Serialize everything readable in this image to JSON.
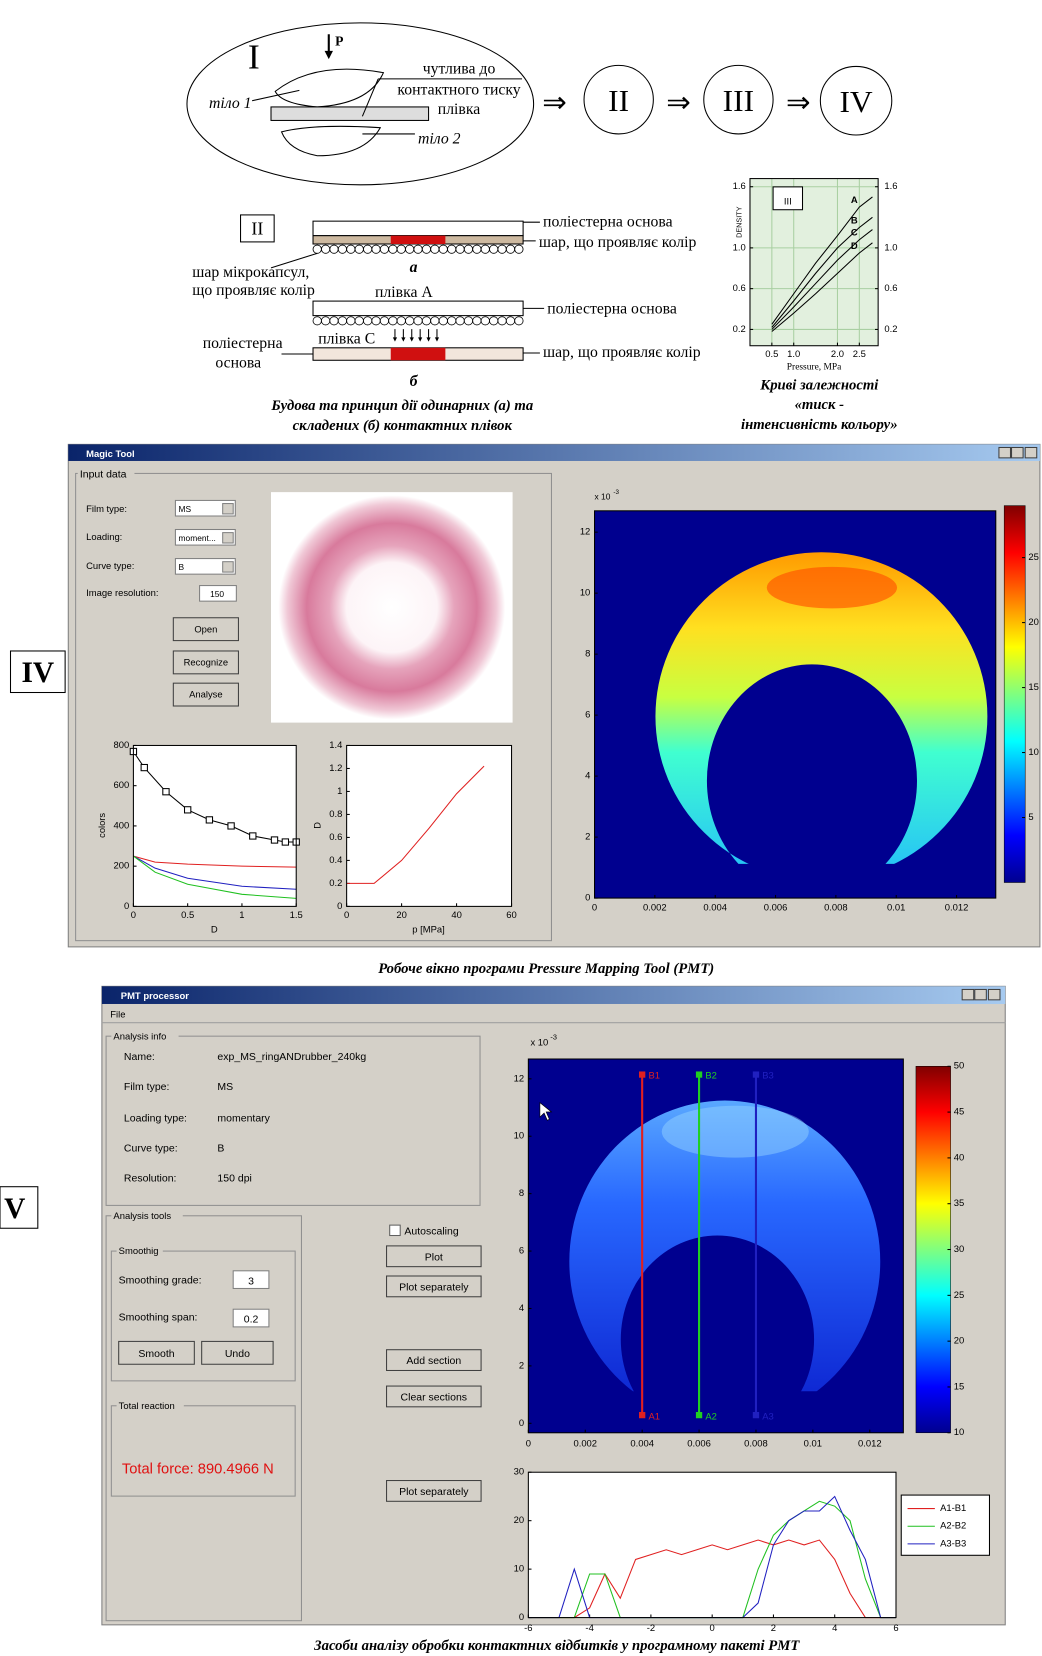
{
  "stage_I": {
    "label": "I",
    "force": "P",
    "film": [
      "чутлива до",
      "контактного тиску",
      "плівка"
    ],
    "body_1": "тіло 1",
    "body_2": "тіло 2",
    "arrow": "⇒",
    "next_stages": [
      "II",
      "III",
      "IV"
    ]
  },
  "film_structure": {
    "label": "II",
    "single_film": "а",
    "composite_film": "б",
    "base": "поліестерна основа",
    "color_layer": "шар, що проявляє колір",
    "microcapsules": [
      "шар мікрокапсул,",
      "що проявляє колір"
    ],
    "film_A": "плівка А",
    "film_C": "плівка С",
    "base_split": [
      "поліестерна",
      "основа"
    ],
    "caption": [
      "Будова та принцип дії одинарних (а) та",
      "складених (б) контактних плівок"
    ]
  },
  "density_chart": {
    "type": "line",
    "label": "III",
    "y_label": "DENSITY",
    "x_label": "Pressure, MPa",
    "xlim": [
      0,
      2.93
    ],
    "ylim": [
      0.04,
      1.68
    ],
    "y2lim": [
      0.04,
      1.68
    ],
    "xticks": [
      0.5,
      {
        "value": 1,
        "label": "1.0"
      },
      {
        "value": 2,
        "label": "2.0"
      },
      2.5
    ],
    "yticks": [
      0.2,
      0.6,
      {
        "value": 1,
        "label": "1.0"
      },
      1.6
    ],
    "y2ticks": [
      0.2,
      0.6,
      {
        "value": 1,
        "label": "1.0"
      },
      1.6
    ],
    "grid": true,
    "grid_color": "#a9cfa2",
    "background": "#e2f0de",
    "series": [
      {
        "name": "A",
        "color": "#000000",
        "x": [
          0.5,
          1,
          1.5,
          2,
          2.5,
          2.8
        ],
        "values": [
          0.25,
          0.55,
          0.85,
          1.12,
          1.4,
          1.5
        ]
      },
      {
        "name": "B",
        "color": "#000000",
        "x": [
          0.5,
          1,
          1.5,
          2,
          2.5,
          2.8
        ],
        "values": [
          0.22,
          0.48,
          0.75,
          1.0,
          1.2,
          1.3
        ]
      },
      {
        "name": "C",
        "color": "#000000",
        "x": [
          0.5,
          1,
          1.5,
          2,
          2.5,
          2.8
        ],
        "values": [
          0.2,
          0.42,
          0.65,
          0.88,
          1.08,
          1.18
        ]
      },
      {
        "name": "D",
        "color": "#000000",
        "x": [
          0.5,
          1,
          1.5,
          2,
          2.5,
          2.8
        ],
        "values": [
          0.18,
          0.36,
          0.55,
          0.75,
          0.95,
          1.05
        ]
      }
    ],
    "caption": [
      "Криві залежності",
      "«тиск -",
      "інтенсивність кольору»"
    ]
  },
  "window_IV": {
    "label": "IV",
    "title": "Magic Tool",
    "group": "Input data",
    "fields": [
      {
        "label": "Film type:",
        "value": "MS"
      },
      {
        "label": "Loading:",
        "value": "moment..."
      },
      {
        "label": "Curve type:",
        "value": "B"
      },
      {
        "label": "Image resolution:",
        "value": "150"
      }
    ],
    "buttons": [
      "Open",
      "Recognize",
      "Analyse"
    ],
    "colors_plot": {
      "type": "line",
      "x_label": "D",
      "y_label": "colors",
      "xlim": [
        0,
        1.5
      ],
      "ylim": [
        0,
        800
      ],
      "xticks": [
        0,
        0.5,
        1,
        1.5
      ],
      "yticks": [
        0,
        200,
        400,
        600,
        800
      ],
      "series": [
        {
          "color": "#000000",
          "marker": "square",
          "x": [
            0,
            0.1,
            0.3,
            0.5,
            0.7,
            0.9,
            1.1,
            1.3,
            1.4,
            1.5
          ],
          "values": [
            770,
            690,
            570,
            480,
            430,
            400,
            350,
            330,
            320,
            320
          ]
        },
        {
          "color": "#e02020",
          "x": [
            0,
            0.2,
            0.5,
            1,
            1.5
          ],
          "values": [
            250,
            220,
            210,
            200,
            195
          ]
        },
        {
          "color": "#2020c0",
          "x": [
            0,
            0.2,
            0.5,
            1,
            1.5
          ],
          "values": [
            250,
            190,
            140,
            100,
            85
          ]
        },
        {
          "color": "#20c020",
          "x": [
            0,
            0.2,
            0.5,
            1,
            1.5
          ],
          "values": [
            250,
            170,
            110,
            60,
            40
          ]
        }
      ]
    },
    "calibration_plot": {
      "type": "line",
      "x_label": "p [MPa]",
      "y_label": "D",
      "xlim": [
        0,
        60
      ],
      "ylim": [
        0,
        1.4
      ],
      "xticks": [
        0,
        20,
        40,
        60
      ],
      "yticks": [
        0,
        0.2,
        0.4,
        0.6,
        0.8,
        1,
        1.2,
        1.4
      ],
      "series": [
        {
          "color": "#e02020",
          "x": [
            0,
            10,
            20,
            30,
            40,
            50
          ],
          "values": [
            0.2,
            0.2,
            0.4,
            0.68,
            0.98,
            1.22
          ]
        }
      ]
    },
    "pressure_map": {
      "type": "heatmap",
      "xlim": [
        0,
        0.0133
      ],
      "ylim": [
        0,
        12.7
      ],
      "xticks": [
        0,
        0.002,
        0.004,
        0.006,
        0.008,
        0.01,
        0.012
      ],
      "yticks": [
        0,
        2,
        4,
        6,
        8,
        10,
        12
      ],
      "y_multiplier": "x 10",
      "y_exponent": "-3",
      "colorbar": {
        "clim": [
          0,
          29
        ],
        "ticks": [
          5,
          10,
          15,
          20,
          25
        ]
      }
    },
    "caption": "Робоче вікно програми Pressure Mapping Tool (PMT)"
  },
  "window_V": {
    "label": "V",
    "title": "PMT processor",
    "menu": "File",
    "info_group": "Analysis info",
    "info": [
      {
        "label": "Name:",
        "value": "exp_MS_ringANDrubber_240kg"
      },
      {
        "label": "Film type:",
        "value": "MS"
      },
      {
        "label": "Loading type:",
        "value": "momentary"
      },
      {
        "label": "Curve type:",
        "value": "B"
      },
      {
        "label": "Resolution:",
        "value": "150 dpi"
      }
    ],
    "tools_group": "Analysis tools",
    "smoothing_group": "Smoothig",
    "smoothing_grade": {
      "label": "Smoothing grade:",
      "value": 3
    },
    "smoothing_span": {
      "label": "Smoothing span:",
      "value": 0.2
    },
    "smooth_buttons": [
      "Smooth",
      "Undo"
    ],
    "reaction_group": "Total reaction",
    "total_force": "Total force: 890.4966 N",
    "autoscaling": "Autoscaling",
    "buttons": [
      "Plot",
      "Plot separately",
      "Add section",
      "Clear sections",
      "Plot separately"
    ],
    "pressure_map": {
      "type": "heatmap",
      "xlim": [
        0,
        0.01318
      ],
      "ylim": [
        -0.33,
        12.69
      ],
      "xticks": [
        0,
        0.002,
        0.004,
        0.006,
        0.008,
        0.01,
        0.012
      ],
      "yticks": [
        0,
        2,
        4,
        6,
        8,
        10,
        12
      ],
      "y_multiplier": "x 10",
      "y_exponent": "-3",
      "colorbar": {
        "clim": [
          10,
          50
        ],
        "ticks": [
          10,
          15,
          20,
          25,
          30,
          35,
          40,
          45,
          50
        ]
      },
      "sections": [
        {
          "top": "B1",
          "bottom": "A1",
          "x": 0.004,
          "color": "#e02020"
        },
        {
          "top": "B2",
          "bottom": "A2",
          "x": 0.006,
          "color": "#20d020"
        },
        {
          "top": "B3",
          "bottom": "A3",
          "x": 0.008,
          "color": "#2020c0"
        }
      ]
    },
    "profile_plot": {
      "type": "line",
      "xlim": [
        -6,
        6
      ],
      "ylim": [
        0,
        30
      ],
      "xticks": [
        -6,
        -4,
        -2,
        0,
        2,
        4,
        6
      ],
      "yticks": [
        0,
        10,
        20,
        30
      ],
      "x": [
        -6,
        -5.5,
        -5,
        -4.5,
        -4,
        -3.5,
        -3,
        -2.5,
        -2,
        -1.5,
        -1,
        -0.5,
        0,
        0.5,
        1,
        1.5,
        2,
        2.5,
        3,
        3.5,
        4,
        4.5,
        5,
        5.5,
        6
      ],
      "series": [
        {
          "name": "A1-B1",
          "color": "#e02020",
          "values": [
            0,
            0,
            0,
            0,
            2,
            9,
            4,
            12,
            13,
            14,
            13,
            14,
            15,
            14,
            15,
            16,
            15,
            16,
            15,
            16,
            12,
            5,
            0,
            0,
            0
          ]
        },
        {
          "name": "A2-B2",
          "color": "#20c020",
          "values": [
            0,
            0,
            0,
            0,
            9,
            9,
            0,
            0,
            0,
            0,
            0,
            0,
            0,
            0,
            0,
            10,
            17,
            20,
            22,
            24,
            23,
            20,
            8,
            0,
            0
          ]
        },
        {
          "name": "A3-B3",
          "color": "#2020c0",
          "values": [
            0,
            0,
            0,
            10,
            0,
            0,
            0,
            0,
            0,
            0,
            0,
            0,
            0,
            0,
            0,
            3,
            15,
            20,
            22,
            22,
            25,
            18,
            12,
            0,
            0
          ]
        }
      ]
    },
    "caption": "Засоби аналізу обробки контактних відбитків у програмному пакеті PMT"
  }
}
